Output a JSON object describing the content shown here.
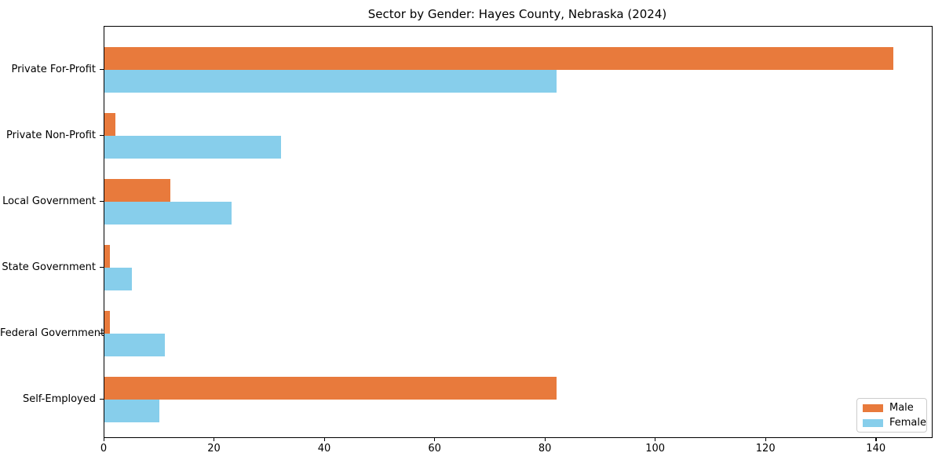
{
  "chart_data": {
    "type": "bar",
    "orientation": "horizontal",
    "title": "Sector by Gender: Hayes County, Nebraska (2024)",
    "categories": [
      "Private For-Profit",
      "Private Non-Profit",
      "Local Government",
      "State Government",
      "Federal Government",
      "Self-Employed"
    ],
    "series": [
      {
        "name": "Male",
        "color": "#E87A3C",
        "values": [
          143,
          2,
          12,
          1,
          1,
          82
        ]
      },
      {
        "name": "Female",
        "color": "#87CEEB",
        "values": [
          82,
          32,
          23,
          5,
          11,
          10
        ]
      }
    ],
    "xlabel": "",
    "ylabel": "",
    "xlim": [
      0,
      150
    ],
    "xticks": [
      0,
      20,
      40,
      60,
      80,
      100,
      120,
      140
    ],
    "grid": false,
    "legend_position": "lower right",
    "background_color": "#ffffff",
    "spine_color": "#000000",
    "legend_border_color": "#cccccc"
  }
}
